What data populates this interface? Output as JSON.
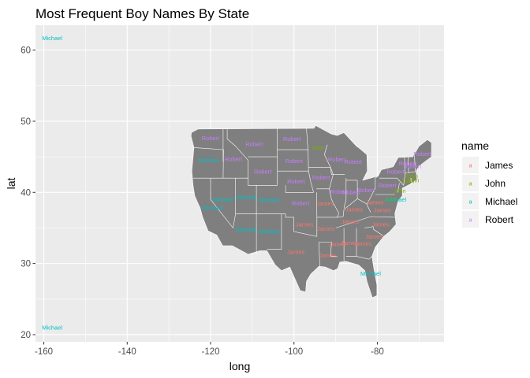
{
  "chart_data": {
    "type": "scatter",
    "title": "Most Frequent Boy Names By State",
    "xlabel": "long",
    "ylabel": "lat",
    "xlim": [
      -162,
      -64
    ],
    "ylim": [
      19,
      63.5
    ],
    "xticks": [
      -160,
      -140,
      -120,
      -100,
      -80
    ],
    "yticks": [
      20,
      30,
      40,
      50,
      60
    ],
    "xtick_labels": [
      "-160",
      "-140",
      "-120",
      "-100",
      "-80"
    ],
    "ytick_labels": [
      "20",
      "30",
      "40",
      "50",
      "60"
    ],
    "legend": {
      "title": "name",
      "position": "right",
      "entries": [
        {
          "label": "James",
          "color": "#F8766D"
        },
        {
          "label": "John",
          "color": "#7CAE00"
        },
        {
          "label": "Michael",
          "color": "#00BFC4"
        },
        {
          "label": "Robert",
          "color": "#C77CFF"
        }
      ]
    },
    "colors": {
      "panel": "#EBEBEB",
      "grid": "#FFFFFF",
      "map_fill": "#7F7F7F",
      "map_border": "#FFFFFF"
    },
    "points": [
      {
        "name": "Michael",
        "long": -120.5,
        "lat": 44.5
      },
      {
        "name": "Robert",
        "long": -120.0,
        "lat": 47.6
      },
      {
        "name": "Michael",
        "long": -119.5,
        "lat": 37.8
      },
      {
        "name": "Michael",
        "long": -117.0,
        "lat": 39.0
      },
      {
        "name": "Robert",
        "long": -114.5,
        "lat": 44.7
      },
      {
        "name": "Michael",
        "long": -111.5,
        "lat": 39.3
      },
      {
        "name": "Michael",
        "long": -111.5,
        "lat": 34.8
      },
      {
        "name": "Robert",
        "long": -109.5,
        "lat": 46.8
      },
      {
        "name": "Robert",
        "long": -107.5,
        "lat": 42.9
      },
      {
        "name": "Michael",
        "long": -106.0,
        "lat": 38.9
      },
      {
        "name": "Michael",
        "long": -106.0,
        "lat": 34.5
      },
      {
        "name": "Robert",
        "long": -100.5,
        "lat": 47.5
      },
      {
        "name": "Robert",
        "long": -100.0,
        "lat": 44.4
      },
      {
        "name": "Robert",
        "long": -99.5,
        "lat": 41.5
      },
      {
        "name": "Robert",
        "long": -98.4,
        "lat": 38.5
      },
      {
        "name": "James",
        "long": -97.5,
        "lat": 35.5
      },
      {
        "name": "James",
        "long": -99.5,
        "lat": 31.6
      },
      {
        "name": "John",
        "long": -94.3,
        "lat": 46.3
      },
      {
        "name": "Robert",
        "long": -93.5,
        "lat": 42.1
      },
      {
        "name": "James",
        "long": -92.5,
        "lat": 38.4
      },
      {
        "name": "James",
        "long": -92.4,
        "lat": 34.9
      },
      {
        "name": "James",
        "long": -91.8,
        "lat": 31.1
      },
      {
        "name": "Robert",
        "long": -89.7,
        "lat": 44.6
      },
      {
        "name": "Robert",
        "long": -89.2,
        "lat": 40.1
      },
      {
        "name": "James",
        "long": -89.6,
        "lat": 32.7
      },
      {
        "name": "Robert",
        "long": -85.8,
        "lat": 44.3
      },
      {
        "name": "Robert",
        "long": -86.3,
        "lat": 40.0
      },
      {
        "name": "James",
        "long": -85.6,
        "lat": 37.6
      },
      {
        "name": "James",
        "long": -86.5,
        "lat": 35.9
      },
      {
        "name": "James",
        "long": -86.7,
        "lat": 32.9
      },
      {
        "name": "Robert",
        "long": -82.7,
        "lat": 40.3
      },
      {
        "name": "James",
        "long": -83.4,
        "lat": 32.8
      },
      {
        "name": "Michael",
        "long": -81.6,
        "lat": 28.6
      },
      {
        "name": "James",
        "long": -79.2,
        "lat": 35.5
      },
      {
        "name": "James",
        "long": -80.8,
        "lat": 33.8
      },
      {
        "name": "James",
        "long": -80.6,
        "lat": 38.6
      },
      {
        "name": "James",
        "long": -78.8,
        "lat": 37.5
      },
      {
        "name": "Robert",
        "long": -77.6,
        "lat": 41.0
      },
      {
        "name": "Robert",
        "long": -75.6,
        "lat": 42.9
      },
      {
        "name": "John",
        "long": -76.7,
        "lat": 39.1
      },
      {
        "name": "Michael",
        "long": -75.5,
        "lat": 39.0
      },
      {
        "name": "John",
        "long": -74.7,
        "lat": 40.2
      },
      {
        "name": "John",
        "long": -72.7,
        "lat": 41.6
      },
      {
        "name": "John",
        "long": -71.5,
        "lat": 41.7
      },
      {
        "name": "John",
        "long": -71.8,
        "lat": 42.3
      },
      {
        "name": "Robert",
        "long": -72.7,
        "lat": 44.1
      },
      {
        "name": "Robert",
        "long": -71.6,
        "lat": 43.7
      },
      {
        "name": "Robert",
        "long": -69.2,
        "lat": 45.4
      },
      {
        "name": "Michael",
        "long": -158.0,
        "lat": 21.0
      },
      {
        "name": "Michael",
        "long": -158.0,
        "lat": 61.7
      }
    ]
  }
}
